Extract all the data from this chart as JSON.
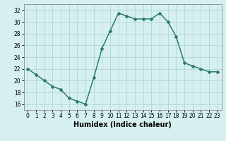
{
  "x": [
    0,
    1,
    2,
    3,
    4,
    5,
    6,
    7,
    8,
    9,
    10,
    11,
    12,
    13,
    14,
    15,
    16,
    17,
    18,
    19,
    20,
    21,
    22,
    23
  ],
  "y": [
    22,
    21,
    20,
    19,
    18.5,
    17,
    16.5,
    16,
    20.5,
    25.5,
    28.5,
    31.5,
    31,
    30.5,
    30.5,
    30.5,
    31.5,
    30,
    27.5,
    23,
    22.5,
    22,
    21.5,
    21.5
  ],
  "line_color": "#2d7a6e",
  "marker": "D",
  "marker_size": 2.0,
  "bg_color": "#d6f0f0",
  "grid_color": "#b0d8d8",
  "xlabel": "Humidex (Indice chaleur)",
  "ylim": [
    15,
    33
  ],
  "xlim": [
    -0.5,
    23.5
  ],
  "yticks": [
    16,
    18,
    20,
    22,
    24,
    26,
    28,
    30,
    32
  ],
  "xticks": [
    0,
    1,
    2,
    3,
    4,
    5,
    6,
    7,
    8,
    9,
    10,
    11,
    12,
    13,
    14,
    15,
    16,
    17,
    18,
    19,
    20,
    21,
    22,
    23
  ],
  "xtick_labels": [
    "0",
    "1",
    "2",
    "3",
    "4",
    "5",
    "6",
    "7",
    "8",
    "9",
    "10",
    "11",
    "12",
    "13",
    "14",
    "15",
    "16",
    "17",
    "18",
    "19",
    "20",
    "21",
    "22",
    "23"
  ],
  "tick_fontsize": 5.5,
  "xlabel_fontsize": 7.0,
  "linewidth": 1.1
}
